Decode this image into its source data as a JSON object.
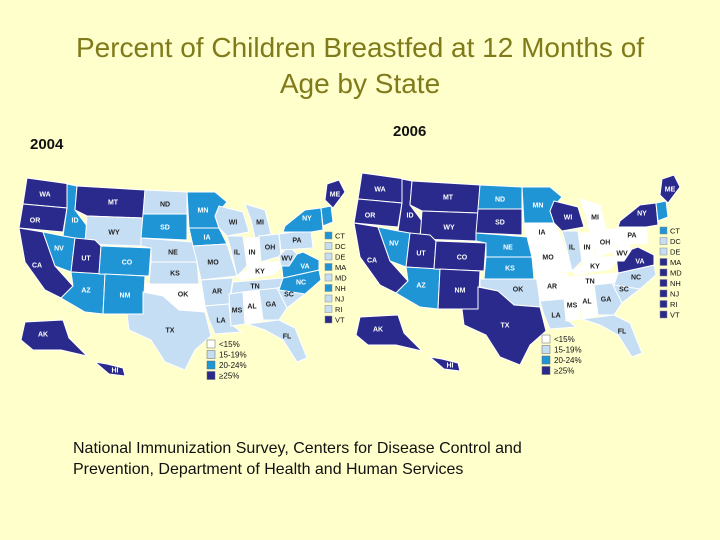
{
  "title_line1": "Percent of Children Breastfed at 12 Months of",
  "title_line2": "Age by State",
  "source_line1": "National Immunization Survey, Centers for Disease Control and",
  "source_line2": "Prevention, Department of Health and Human Services",
  "colors": {
    "background": "#ffffcc",
    "title": "#807b1a",
    "lt15": "#ffffff",
    "b15_19": "#c6def4",
    "b20_24": "#1f95d6",
    "ge25": "#2a2a8c",
    "border": "#ffffff"
  },
  "legend": [
    {
      "label": "<15%",
      "key": "lt15"
    },
    {
      "label": "15-19%",
      "key": "b15_19"
    },
    {
      "label": "20-24%",
      "key": "b20_24"
    },
    {
      "label": "≥25%",
      "key": "ge25"
    }
  ],
  "small_states_labels": [
    "CT",
    "DC",
    "DE",
    "MA",
    "MD",
    "NH",
    "NJ",
    "RI",
    "VT"
  ],
  "maps": [
    {
      "year": "2004",
      "states": {
        "WA": "ge25",
        "OR": "ge25",
        "CA": "ge25",
        "ID": "b20_24",
        "NV": "b20_24",
        "MT": "ge25",
        "WY": "b15_19",
        "UT": "ge25",
        "AZ": "b20_24",
        "CO": "b20_24",
        "NM": "b20_24",
        "ND": "b15_19",
        "SD": "b20_24",
        "NE": "b15_19",
        "KS": "b15_19",
        "OK": "lt15",
        "TX": "b15_19",
        "MN": "b20_24",
        "IA": "b20_24",
        "MO": "b15_19",
        "AR": "b15_19",
        "LA": "b15_19",
        "WI": "b15_19",
        "IL": "b15_19",
        "MI": "b15_19",
        "IN": "lt15",
        "OH": "b15_19",
        "KY": "lt15",
        "TN": "b15_19",
        "MS": "b15_19",
        "AL": "lt15",
        "GA": "b15_19",
        "FL": "b15_19",
        "SC": "b15_19",
        "NC": "b20_24",
        "VA": "b20_24",
        "WV": "b15_19",
        "PA": "b15_19",
        "NY": "b20_24",
        "ME": "ge25",
        "AK": "ge25",
        "HI": "ge25",
        "NE_corner": "b20_24"
      },
      "small_states": [
        "b20_24",
        "b15_19",
        "b15_19",
        "b20_24",
        "b15_19",
        "b20_24",
        "b15_19",
        "b15_19",
        "ge25"
      ]
    },
    {
      "year": "2006",
      "states": {
        "WA": "ge25",
        "OR": "ge25",
        "CA": "ge25",
        "ID": "ge25",
        "NV": "b20_24",
        "MT": "ge25",
        "WY": "ge25",
        "UT": "ge25",
        "AZ": "b20_24",
        "CO": "ge25",
        "NM": "ge25",
        "ND": "b20_24",
        "SD": "ge25",
        "NE": "b20_24",
        "KS": "b20_24",
        "OK": "b15_19",
        "TX": "ge25",
        "MN": "b20_24",
        "IA": "lt15",
        "MO": "lt15",
        "AR": "lt15",
        "LA": "b15_19",
        "WI": "ge25",
        "IL": "b15_19",
        "MI": "lt15",
        "IN": "lt15",
        "OH": "lt15",
        "KY": "lt15",
        "TN": "lt15",
        "MS": "lt15",
        "AL": "lt15",
        "GA": "b15_19",
        "FL": "b15_19",
        "SC": "b15_19",
        "NC": "b15_19",
        "VA": "ge25",
        "WV": "lt15",
        "PA": "lt15",
        "NY": "ge25",
        "ME": "ge25",
        "AK": "ge25",
        "HI": "ge25",
        "NE_corner": "b20_24"
      },
      "small_states": [
        "b20_24",
        "b15_19",
        "b15_19",
        "ge25",
        "ge25",
        "ge25",
        "ge25",
        "ge25",
        "ge25"
      ]
    }
  ]
}
